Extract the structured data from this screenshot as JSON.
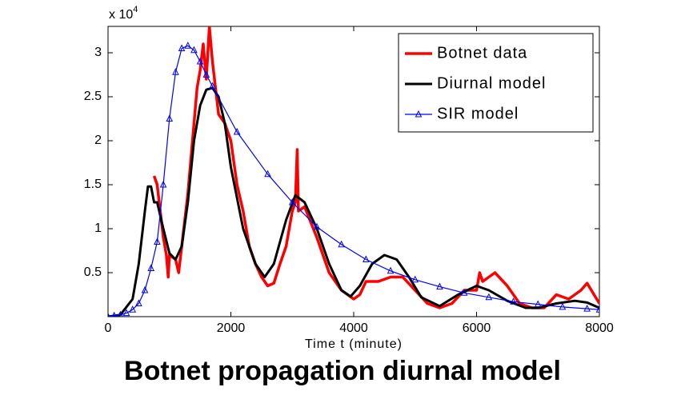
{
  "chart_data": {
    "type": "line",
    "title": "Botnet propagation diurnal model",
    "xlabel": "Time t (minute)",
    "y_scale_label": {
      "base": "x 10",
      "exponent": "4"
    },
    "xlim": [
      0,
      8000
    ],
    "ylim": [
      0,
      3.3
    ],
    "xticks": [
      0,
      2000,
      4000,
      6000,
      8000
    ],
    "yticks": [
      0.5,
      1,
      1.5,
      2,
      2.5,
      3
    ],
    "legend": "upper right",
    "series": [
      {
        "name": "Botnet data",
        "color": "#ff0000",
        "width": 3.5,
        "x": [
          750,
          800,
          850,
          900,
          950,
          980,
          1000,
          1100,
          1150,
          1200,
          1300,
          1400,
          1450,
          1500,
          1550,
          1600,
          1650,
          1700,
          1750,
          1800,
          1900,
          2000,
          2100,
          2200,
          2300,
          2400,
          2500,
          2600,
          2700,
          2800,
          2900,
          3000,
          3050,
          3080,
          3100,
          3200,
          3400,
          3600,
          3800,
          4000,
          4100,
          4200,
          4400,
          4600,
          4800,
          5000,
          5200,
          5400,
          5600,
          5800,
          6000,
          6050,
          6100,
          6300,
          6500,
          6700,
          6900,
          7100,
          7300,
          7500,
          7700,
          7800,
          8000
        ],
        "values": [
          1.6,
          1.5,
          1.2,
          0.9,
          0.7,
          0.45,
          0.7,
          0.65,
          0.5,
          0.8,
          1.4,
          2.2,
          2.6,
          2.8,
          3.1,
          2.7,
          3.3,
          2.9,
          2.6,
          2.3,
          2.2,
          2.0,
          1.5,
          1.2,
          0.8,
          0.6,
          0.45,
          0.35,
          0.38,
          0.6,
          0.8,
          1.2,
          1.3,
          1.9,
          1.2,
          1.25,
          0.9,
          0.5,
          0.3,
          0.2,
          0.25,
          0.4,
          0.4,
          0.45,
          0.45,
          0.3,
          0.15,
          0.1,
          0.15,
          0.3,
          0.3,
          0.5,
          0.4,
          0.5,
          0.35,
          0.15,
          0.1,
          0.1,
          0.25,
          0.2,
          0.3,
          0.38,
          0.15
        ]
      },
      {
        "name": "Diurnal model",
        "color": "#000000",
        "width": 3,
        "x": [
          0,
          200,
          400,
          500,
          600,
          650,
          700,
          750,
          800,
          900,
          1000,
          1100,
          1200,
          1300,
          1400,
          1500,
          1600,
          1700,
          1800,
          1900,
          2000,
          2200,
          2400,
          2550,
          2700,
          2900,
          3050,
          3200,
          3400,
          3600,
          3800,
          3950,
          4100,
          4300,
          4500,
          4700,
          4900,
          5100,
          5400,
          5700,
          6000,
          6200,
          6500,
          6800,
          7000,
          7300,
          7600,
          7800,
          8000
        ],
        "values": [
          0,
          0.02,
          0.2,
          0.6,
          1.2,
          1.48,
          1.48,
          1.3,
          1.3,
          1.0,
          0.72,
          0.65,
          0.8,
          1.3,
          2.0,
          2.4,
          2.58,
          2.6,
          2.5,
          2.2,
          1.7,
          1.0,
          0.6,
          0.45,
          0.6,
          1.1,
          1.38,
          1.3,
          1.0,
          0.6,
          0.3,
          0.23,
          0.35,
          0.6,
          0.7,
          0.65,
          0.45,
          0.22,
          0.12,
          0.25,
          0.35,
          0.3,
          0.18,
          0.1,
          0.1,
          0.15,
          0.18,
          0.16,
          0.1
        ]
      },
      {
        "name": "SIR model",
        "color": "#0000ff",
        "width": 1.2,
        "marker": "triangle",
        "x": [
          0,
          100,
          200,
          300,
          400,
          500,
          600,
          700,
          800,
          900,
          1000,
          1100,
          1200,
          1300,
          1400,
          1500,
          1600,
          1700,
          2100,
          2600,
          3000,
          3400,
          3800,
          4200,
          4600,
          5000,
          5400,
          5800,
          6200,
          6600,
          7000,
          7400,
          7800,
          8000
        ],
        "values": [
          0,
          0.01,
          0.02,
          0.04,
          0.08,
          0.15,
          0.3,
          0.55,
          0.85,
          1.5,
          2.25,
          2.78,
          3.05,
          3.08,
          3.03,
          2.9,
          2.75,
          2.62,
          2.1,
          1.62,
          1.3,
          1.02,
          0.82,
          0.65,
          0.52,
          0.42,
          0.34,
          0.27,
          0.22,
          0.17,
          0.14,
          0.11,
          0.09,
          0.08
        ]
      }
    ]
  }
}
